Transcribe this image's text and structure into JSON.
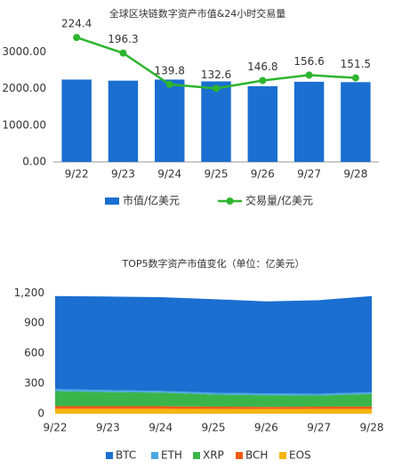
{
  "chart_data": [
    {
      "type": "bar",
      "title": "全球区块链数字资产市值&24小时交易量",
      "categories": [
        "9/22",
        "9/23",
        "9/24",
        "9/25",
        "9/26",
        "9/27",
        "9/28"
      ],
      "series": [
        {
          "name": "市值/亿美元",
          "type": "bar",
          "color": "#1a6fd0",
          "values": [
            2250,
            2220,
            2250,
            2200,
            2070,
            2190,
            2180
          ]
        },
        {
          "name": "交易量/亿美元",
          "type": "line",
          "axis": "y2",
          "color": "#2db52d",
          "values": [
            224.4,
            196.3,
            139.8,
            132.6,
            146.8,
            156.6,
            151.5
          ]
        }
      ],
      "ylim": [
        0,
        3500
      ],
      "yticks": [
        {
          "value": 0,
          "label": "0.00"
        },
        {
          "value": 1000,
          "label": "1000.00"
        },
        {
          "value": 2000,
          "label": "2000.00"
        },
        {
          "value": 3000,
          "label": "3000.00"
        }
      ],
      "y2lim": [
        0,
        231
      ],
      "grid": false,
      "legend": "bottom"
    },
    {
      "type": "area",
      "stacked": true,
      "title": "TOP5数字资产市值变化（单位：亿美元）",
      "categories": [
        "9/22",
        "9/23",
        "9/24",
        "9/25",
        "9/26",
        "9/27",
        "9/28"
      ],
      "series": [
        {
          "name": "BTC",
          "color": "#1a6fd0",
          "values": [
            925,
            930,
            930,
            930,
            915,
            930,
            955
          ]
        },
        {
          "name": "ETH",
          "color": "#4aa8e0",
          "values": [
            20,
            20,
            18,
            18,
            18,
            18,
            18
          ]
        },
        {
          "name": "XRP",
          "color": "#3ab54a",
          "values": [
            150,
            140,
            135,
            120,
            115,
            110,
            125
          ]
        },
        {
          "name": "BCH",
          "color": "#f05a14",
          "values": [
            25,
            25,
            25,
            23,
            22,
            23,
            24
          ]
        },
        {
          "name": "EOS",
          "color": "#f5b50f",
          "values": [
            50,
            50,
            50,
            48,
            47,
            48,
            48
          ]
        }
      ],
      "ylim": [
        0,
        1300
      ],
      "yticks": [
        0,
        300,
        600,
        900,
        {
          "value": 1200,
          "label": "1,200"
        }
      ],
      "grid": false,
      "legend": "bottom"
    }
  ]
}
